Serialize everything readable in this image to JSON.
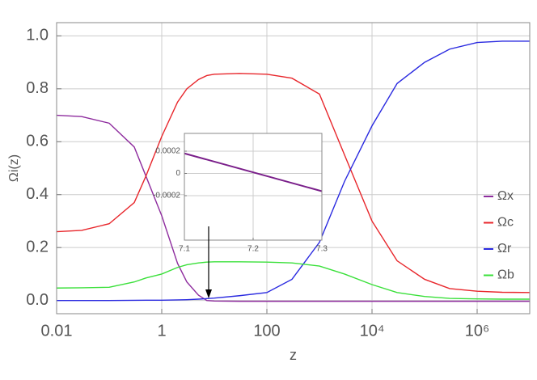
{
  "chart_data": [
    {
      "type": "line",
      "x_label": "z",
      "y_label": "Ωi(z)",
      "xscale": "log",
      "grid": true,
      "legend": "right",
      "xlim": [
        0.01,
        10000000
      ],
      "ylim": [
        -0.05,
        1.05
      ],
      "xticks": [
        0.01,
        1,
        100,
        {
          "value": 10000,
          "label": "10⁴"
        },
        {
          "value": 1000000,
          "label": "10⁶"
        }
      ],
      "yticks": [
        {
          "value": 0,
          "label": "0.0"
        },
        0.2,
        0.4,
        0.6,
        0.8,
        {
          "value": 1,
          "label": "1.0"
        }
      ],
      "x": [
        0.01,
        0.03,
        0.1,
        0.3,
        0.5,
        1,
        2,
        3,
        5,
        7.2,
        10,
        30,
        100,
        300,
        1000,
        3000,
        10000,
        30000,
        100000,
        300000,
        1000000,
        3000000,
        10000000
      ],
      "series": [
        {
          "name": "Ωx",
          "color": "#8e2c9e",
          "values": [
            0.7,
            0.695,
            0.67,
            0.58,
            0.47,
            0.32,
            0.14,
            0.07,
            0.02,
            0,
            -0.002,
            -0.003,
            -0.003,
            -0.003,
            -0.003,
            -0.003,
            -0.003,
            -0.003,
            -0.003,
            -0.003,
            -0.003,
            -0.003,
            -0.003
          ]
        },
        {
          "name": "Ωc",
          "color": "#e8262b",
          "values": [
            0.26,
            0.265,
            0.29,
            0.37,
            0.47,
            0.62,
            0.75,
            0.8,
            0.835,
            0.85,
            0.855,
            0.858,
            0.855,
            0.84,
            0.78,
            0.55,
            0.3,
            0.15,
            0.08,
            0.045,
            0.035,
            0.031,
            0.03
          ]
        },
        {
          "name": "Ωr",
          "color": "#2a2ae0",
          "values": [
            0,
            0,
            0,
            0.0005,
            0.001,
            0.001,
            0.002,
            0.003,
            0.005,
            0.007,
            0.009,
            0.018,
            0.03,
            0.08,
            0.22,
            0.45,
            0.66,
            0.82,
            0.9,
            0.95,
            0.975,
            0.98,
            0.98
          ]
        },
        {
          "name": "Ωb",
          "color": "#3ae03a",
          "values": [
            0.047,
            0.048,
            0.05,
            0.07,
            0.085,
            0.1,
            0.125,
            0.135,
            0.142,
            0.145,
            0.146,
            0.146,
            0.145,
            0.142,
            0.13,
            0.1,
            0.06,
            0.03,
            0.015,
            0.008,
            0.006,
            0.005,
            0.005
          ]
        }
      ]
    },
    {
      "type": "line",
      "grid": true,
      "xlim": [
        7.1,
        7.3
      ],
      "ylim": [
        -0.0006,
        0.00036
      ],
      "xticks": [
        7.1,
        7.2,
        7.3
      ],
      "yticks": [
        -0.0002,
        0,
        0.0002
      ],
      "x": [
        7.1,
        7.3
      ],
      "series": [
        {
          "color": "#7a1f8a",
          "values": [
            0.00018,
            -0.00016
          ]
        }
      ]
    }
  ]
}
